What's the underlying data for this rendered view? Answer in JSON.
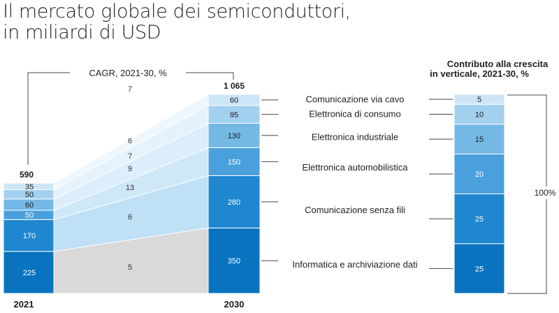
{
  "title_line1": "Il mercato globale dei semiconduttori,",
  "title_line2": "in miliardi di USD",
  "chart_data": {
    "type": "bar",
    "categories": [
      "2021",
      "2030"
    ],
    "totals": [
      "590",
      "1 065"
    ],
    "series": [
      {
        "name": "Informatica e archiviazione dati",
        "values": [
          225,
          350
        ],
        "cagr": "5",
        "growth_share": 25,
        "color": "#0a73c0"
      },
      {
        "name": "Comunicazione senza fili",
        "values": [
          170,
          280
        ],
        "cagr": "6",
        "growth_share": 25,
        "color": "#1e87cf"
      },
      {
        "name": "Elettronica automobilistica",
        "values": [
          50,
          150
        ],
        "cagr": "13",
        "growth_share": 20,
        "color": "#4aa0dc"
      },
      {
        "name": "Elettronica industriale",
        "values": [
          60,
          130
        ],
        "cagr": "9",
        "growth_share": 15,
        "color": "#74b8e6"
      },
      {
        "name": "Elettronica di consumo",
        "values": [
          50,
          95
        ],
        "cagr": "7",
        "growth_share": 10,
        "color": "#a3d0ef"
      },
      {
        "name": "Comunicazione via cavo",
        "values": [
          35,
          60
        ],
        "cagr": "6",
        "growth_share": 5,
        "color": "#cde6f7"
      }
    ],
    "overall_cagr": "7",
    "cagr_label": "CAGR, 2021-30, %",
    "contribution_title_line1": "Contributo alla crescita",
    "contribution_title_line2": "in verticale, 2021-30, %",
    "contribution_total": "100%",
    "band_colors": [
      "#d9d9d9",
      "#bfe0f5",
      "#cfe8f8",
      "#dbeefa",
      "#e5f2fb",
      "#eef7fd"
    ]
  }
}
